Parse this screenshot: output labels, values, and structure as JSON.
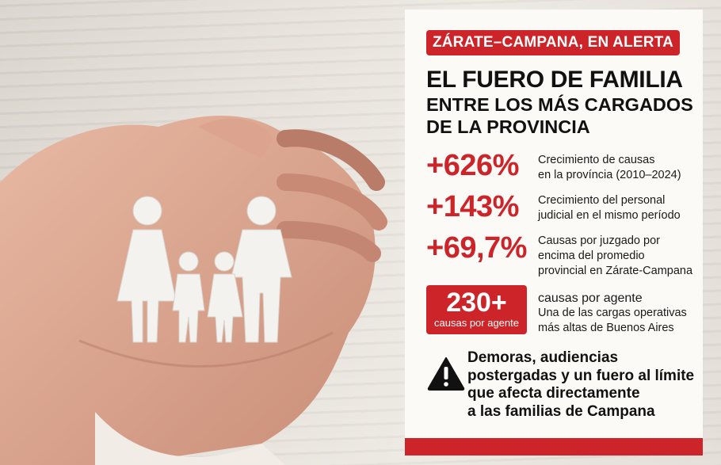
{
  "badge": "ZÁRATE–CAMPANA, EN ALERTA",
  "title": {
    "line1": "EL FUERO DE FAMILIA",
    "line2": "ENTRE LOS MÁS CARGADOS",
    "line3": "DE LA PROVINCIA"
  },
  "stats": [
    {
      "value": "+626%",
      "lines": [
        "Crecimiento de causas",
        "en la província (2010–2024)"
      ]
    },
    {
      "value": "+143%",
      "lines": [
        "Crecimiento del personal",
        "judicial en el mismo período"
      ]
    },
    {
      "value": "+69,7%",
      "lines": [
        "Causas por juzgado por",
        "encima del promedio",
        "provincial en Zárate-Campana"
      ]
    }
  ],
  "highlight": {
    "value": "230+",
    "sub": "causas por agente",
    "lines": [
      "causas por agente",
      "Una de las cargas operativas",
      "más altas de Buenos Aires"
    ]
  },
  "warning": {
    "icon": "warning-triangle-icon",
    "lines": [
      "Demoras, audiencias",
      "postergadas y un fuero al límite",
      "que afecta directamente",
      "a las familias de Campana"
    ]
  },
  "colors": {
    "accent": "#cc2428",
    "panel": "#fbfaf7",
    "text": "#111111"
  }
}
